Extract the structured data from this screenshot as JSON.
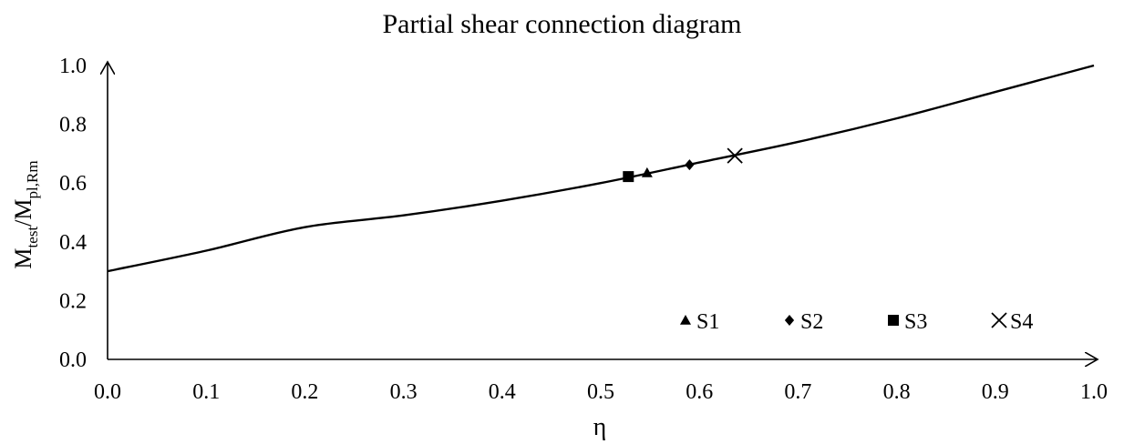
{
  "chart_data": {
    "type": "line",
    "title": "Partial shear connection diagram",
    "xlabel": "η",
    "ylabel": {
      "main": "M",
      "sub1": "test",
      "sep": "/M",
      "sub2": "pl,Rm"
    },
    "xlim": [
      0.0,
      1.0
    ],
    "ylim": [
      0.0,
      1.0
    ],
    "x_ticks": [
      "0.0",
      "0.1",
      "0.2",
      "0.3",
      "0.4",
      "0.5",
      "0.6",
      "0.7",
      "0.8",
      "0.9",
      "1.0"
    ],
    "y_ticks": [
      "0.0",
      "0.2",
      "0.4",
      "0.6",
      "0.8",
      "1.0"
    ],
    "grid": false,
    "legend_position": "bottom-right",
    "curve": {
      "x": [
        0.0,
        0.1,
        0.2,
        0.3,
        0.4,
        0.5,
        0.6,
        0.7,
        0.8,
        0.9,
        1.0
      ],
      "y": [
        0.3,
        0.37,
        0.45,
        0.49,
        0.54,
        0.6,
        0.67,
        0.74,
        0.82,
        0.91,
        1.0
      ]
    },
    "series": [
      {
        "name": "S1",
        "marker": "triangle",
        "x": 0.547,
        "y": 0.635
      },
      {
        "name": "S2",
        "marker": "diamond",
        "x": 0.59,
        "y": 0.662
      },
      {
        "name": "S3",
        "marker": "square",
        "x": 0.528,
        "y": 0.622
      },
      {
        "name": "S4",
        "marker": "cross",
        "x": 0.636,
        "y": 0.693
      }
    ]
  }
}
